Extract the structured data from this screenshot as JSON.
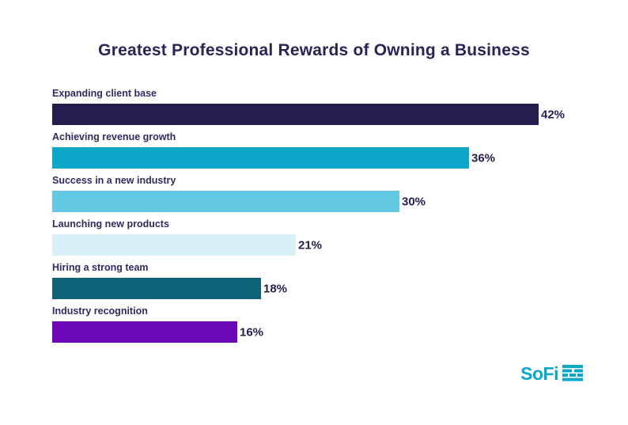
{
  "title": "Greatest Professional Rewards of Owning a Business",
  "chart_data": {
    "type": "bar",
    "orientation": "horizontal",
    "title": "Greatest Professional Rewards of Owning a Business",
    "categories": [
      "Expanding client base",
      "Achieving revenue growth",
      "Success in a new industry",
      "Launching new products",
      "Hiring a strong team",
      "Industry recognition"
    ],
    "values": [
      42,
      36,
      30,
      21,
      18,
      16
    ],
    "value_labels": [
      "42%",
      "36%",
      "30%",
      "21%",
      "18%",
      "16%"
    ],
    "bar_colors": [
      "#251d4d",
      "#0ba7c9",
      "#63c8e1",
      "#d9eff8",
      "#0f6379",
      "#6a06b5"
    ],
    "xlabel": "",
    "ylabel": "",
    "xlim": [
      0,
      45
    ],
    "grid": false,
    "legend": false,
    "data_labels_position": "right-of-bar"
  },
  "branding": {
    "logo_text": "SoFi",
    "logo_color": "#0ba7c9"
  },
  "colors": {
    "background": "#ffffff",
    "title_text": "#2a2357",
    "label_text": "#2e2c5e",
    "value_text": "#251d4d"
  }
}
